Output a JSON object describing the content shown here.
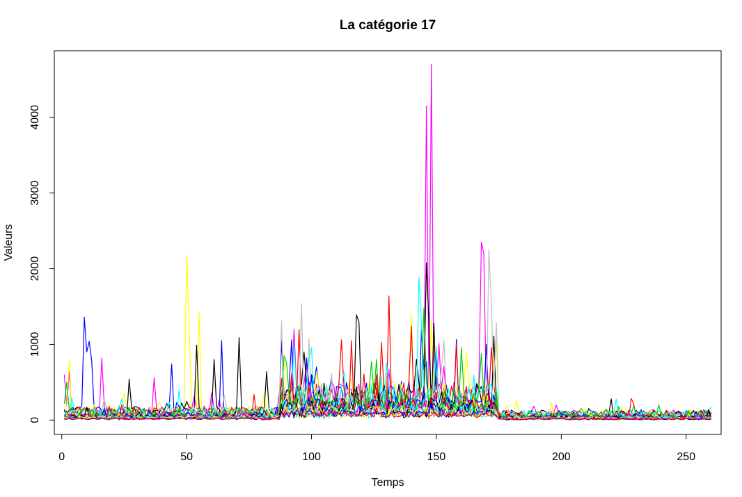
{
  "chart_data": {
    "type": "line",
    "title": "La catégorie 17",
    "xlabel": "Temps",
    "ylabel": "Valeurs",
    "xlim": [
      -3,
      264
    ],
    "ylim": [
      -190,
      4880
    ],
    "xticks": [
      0,
      50,
      100,
      150,
      200,
      250
    ],
    "yticks": [
      0,
      1000,
      2000,
      3000,
      4000
    ],
    "grid": false,
    "legend": "none",
    "n_points": 260,
    "palette": [
      "#000000",
      "#ff0000",
      "#00cd00",
      "#0000ff",
      "#00ffff",
      "#ff00ff",
      "#ffff00",
      "#bebebe"
    ],
    "series": [
      {
        "color": "#ff00ff",
        "base": 120,
        "noise": 70,
        "peaks": [
          [
            1,
            600
          ],
          [
            3,
            640
          ],
          [
            16,
            820
          ],
          [
            37,
            560
          ],
          [
            60,
            360
          ],
          [
            93,
            1200
          ],
          [
            98,
            760
          ],
          [
            146,
            4150
          ],
          [
            148,
            4700
          ],
          [
            168,
            2350
          ],
          [
            169,
            2200
          ]
        ]
      },
      {
        "color": "#0000ff",
        "base": 110,
        "noise": 75,
        "peaks": [
          [
            9,
            1360
          ],
          [
            10,
            900
          ],
          [
            11,
            1040
          ],
          [
            12,
            780
          ],
          [
            44,
            740
          ],
          [
            64,
            1050
          ],
          [
            88,
            1050
          ],
          [
            92,
            1060
          ],
          [
            102,
            700
          ],
          [
            144,
            1200
          ],
          [
            150,
            800
          ],
          [
            170,
            1000
          ]
        ]
      },
      {
        "color": "#ffff00",
        "base": 115,
        "noise": 80,
        "peaks": [
          [
            3,
            790
          ],
          [
            50,
            2180
          ],
          [
            51,
            1200
          ],
          [
            55,
            1420
          ],
          [
            140,
            1400
          ],
          [
            148,
            1330
          ],
          [
            162,
            900
          ],
          [
            174,
            1040
          ]
        ]
      },
      {
        "color": "#000000",
        "base": 105,
        "noise": 70,
        "peaks": [
          [
            27,
            540
          ],
          [
            54,
            990
          ],
          [
            61,
            800
          ],
          [
            71,
            1090
          ],
          [
            82,
            640
          ],
          [
            97,
            900
          ],
          [
            118,
            1390
          ],
          [
            119,
            1300
          ],
          [
            146,
            2080
          ],
          [
            147,
            1300
          ],
          [
            149,
            1280
          ],
          [
            173,
            1110
          ]
        ]
      },
      {
        "color": "#ff0000",
        "base": 100,
        "noise": 75,
        "peaks": [
          [
            95,
            1200
          ],
          [
            112,
            1060
          ],
          [
            116,
            1050
          ],
          [
            131,
            1640
          ],
          [
            140,
            1240
          ],
          [
            158,
            1000
          ],
          [
            172,
            960
          ]
        ]
      },
      {
        "color": "#bebebe",
        "base": 95,
        "noise": 65,
        "peaks": [
          [
            88,
            1310
          ],
          [
            96,
            1540
          ],
          [
            99,
            1080
          ],
          [
            153,
            1060
          ],
          [
            171,
            2250
          ],
          [
            172,
            1560
          ],
          [
            174,
            1290
          ]
        ]
      },
      {
        "color": "#00ffff",
        "base": 100,
        "noise": 70,
        "peaks": [
          [
            4,
            300
          ],
          [
            47,
            400
          ],
          [
            93,
            1000
          ],
          [
            100,
            960
          ],
          [
            143,
            1890
          ],
          [
            144,
            1300
          ],
          [
            165,
            600
          ]
        ]
      },
      {
        "color": "#00cd00",
        "base": 90,
        "noise": 65,
        "peaks": [
          [
            2,
            500
          ],
          [
            90,
            760
          ],
          [
            126,
            800
          ],
          [
            145,
            1480
          ],
          [
            160,
            960
          ],
          [
            168,
            880
          ]
        ]
      },
      {
        "color": "#0000ff",
        "base": 60,
        "noise": 40,
        "peaks": []
      },
      {
        "color": "#ff0000",
        "base": 55,
        "noise": 40,
        "peaks": []
      },
      {
        "color": "#00cd00",
        "base": 50,
        "noise": 35,
        "peaks": []
      },
      {
        "color": "#000000",
        "base": 45,
        "noise": 35,
        "peaks": []
      },
      {
        "color": "#ff00ff",
        "base": 40,
        "noise": 30,
        "peaks": []
      },
      {
        "color": "#00ffff",
        "base": 35,
        "noise": 30,
        "peaks": []
      },
      {
        "color": "#ffff00",
        "base": 30,
        "noise": 25,
        "peaks": []
      },
      {
        "color": "#bebebe",
        "base": 25,
        "noise": 20,
        "peaks": []
      },
      {
        "color": "#0000ff",
        "base": 20,
        "noise": 15,
        "peaks": []
      },
      {
        "color": "#ff0000",
        "base": 15,
        "noise": 12,
        "peaks": []
      }
    ]
  }
}
